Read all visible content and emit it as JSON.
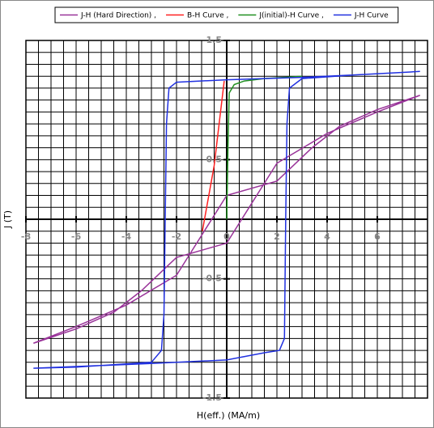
{
  "chart_data": {
    "type": "line",
    "x_label": "H(eff.) (MA/m)",
    "y_label": "J (T)",
    "xlim": [
      -8,
      8
    ],
    "ylim": [
      -1.5,
      1.5
    ],
    "xticks": [
      -8,
      -6,
      -4,
      -2,
      0,
      2,
      4,
      6
    ],
    "yticks": [
      -1.5,
      -0.5,
      0.5,
      1.5
    ],
    "grid": true,
    "x_grid_step": 0.5,
    "y_grid_step": 0.1,
    "legend": "top",
    "series": [
      {
        "name": "J-H (Hard Direction) ,",
        "color": "#993399",
        "x": [
          -7.7,
          -6,
          -4.5,
          -3.4,
          -2.4,
          -2,
          0,
          2,
          4,
          6,
          7.7,
          6,
          4.5,
          3.4,
          2.4,
          2,
          0,
          -2,
          -4,
          -6,
          -7.7
        ],
        "values": [
          -1.04,
          -0.92,
          -0.78,
          -0.6,
          -0.4,
          -0.32,
          -0.2,
          0.47,
          0.72,
          0.9,
          1.04,
          0.92,
          0.78,
          0.6,
          0.4,
          0.32,
          0.2,
          -0.47,
          -0.72,
          -0.9,
          -1.04
        ]
      },
      {
        "name": "B-H Curve ,",
        "color": "#ff2020",
        "x": [
          -0.97,
          -0.5,
          -0.1
        ],
        "values": [
          -0.1,
          0.45,
          1.16
        ]
      },
      {
        "name": "J(initial)-H Curve ,",
        "color": "#209020",
        "x": [
          0,
          0.05,
          0.1,
          0.3,
          0.7,
          1.5,
          3
        ],
        "values": [
          0,
          0.6,
          1.06,
          1.13,
          1.16,
          1.18,
          1.2
        ]
      },
      {
        "name": "J-H Curve",
        "color": "#2030e0",
        "x": [
          7.7,
          5,
          3,
          0,
          -2,
          -2.3,
          -2.4,
          -2.45,
          -2.5,
          -2.6,
          -3,
          -6,
          -7.7,
          -3,
          0,
          1.5,
          2.1,
          2.3,
          2.35,
          2.4,
          2.5,
          3,
          5,
          7.7
        ],
        "values": [
          1.24,
          1.21,
          1.19,
          1.17,
          1.15,
          1.1,
          0.8,
          0,
          -0.8,
          -1.1,
          -1.2,
          -1.24,
          -1.25,
          -1.21,
          -1.18,
          -1.12,
          -1.1,
          -1.0,
          0,
          0.8,
          1.1,
          1.18,
          1.21,
          1.24
        ]
      }
    ]
  }
}
